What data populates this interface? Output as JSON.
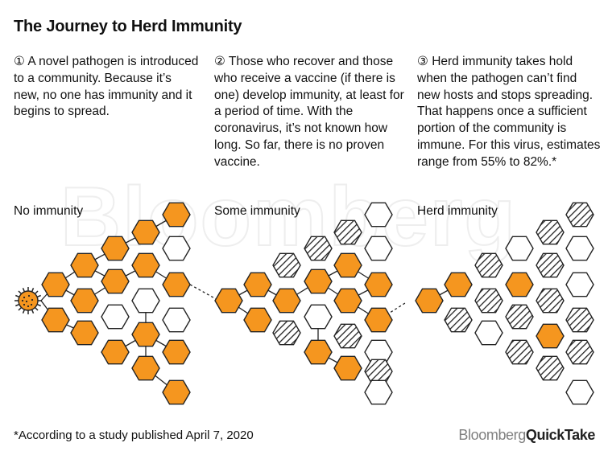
{
  "title": "The Journey to Herd Immunity",
  "steps": [
    {
      "text": "① A novel pathogen is introduced to a community. Because it’s new, no one has immunity and it begins to spread."
    },
    {
      "text": "② Those who recover and those who receive a vaccine (if there is one) develop immunity, at least for a period of time. With the coronavirus, it’s not known how long. So far, there is no proven vaccine."
    },
    {
      "text": "③ Herd immunity takes hold when the pathogen can’t find new hosts and stops spreading. That happens once a sufficient portion of the community is immune. For this virus, estimates range from 55% to 82%.*"
    }
  ],
  "panels": [
    {
      "label": "No immunity"
    },
    {
      "label": "Some immunity"
    },
    {
      "label": "Herd immunity"
    }
  ],
  "watermark": "Bloomberg",
  "footnote": "*According to a study published April 7, 2020",
  "brand": {
    "part1": "Bloomberg",
    "part2": "QuickTake"
  },
  "legend_states": {
    "infected": {
      "fill": "#f5961f",
      "stroke": "#222222"
    },
    "immune": {
      "pattern": "diagonal-hatch",
      "stroke": "#222222"
    },
    "susceptible": {
      "fill": "#ffffff",
      "stroke": "#222222"
    }
  },
  "colors": {
    "infected": "#f5961f",
    "outline": "#222222",
    "text": "#111111",
    "brand_gray": "#808080"
  }
}
